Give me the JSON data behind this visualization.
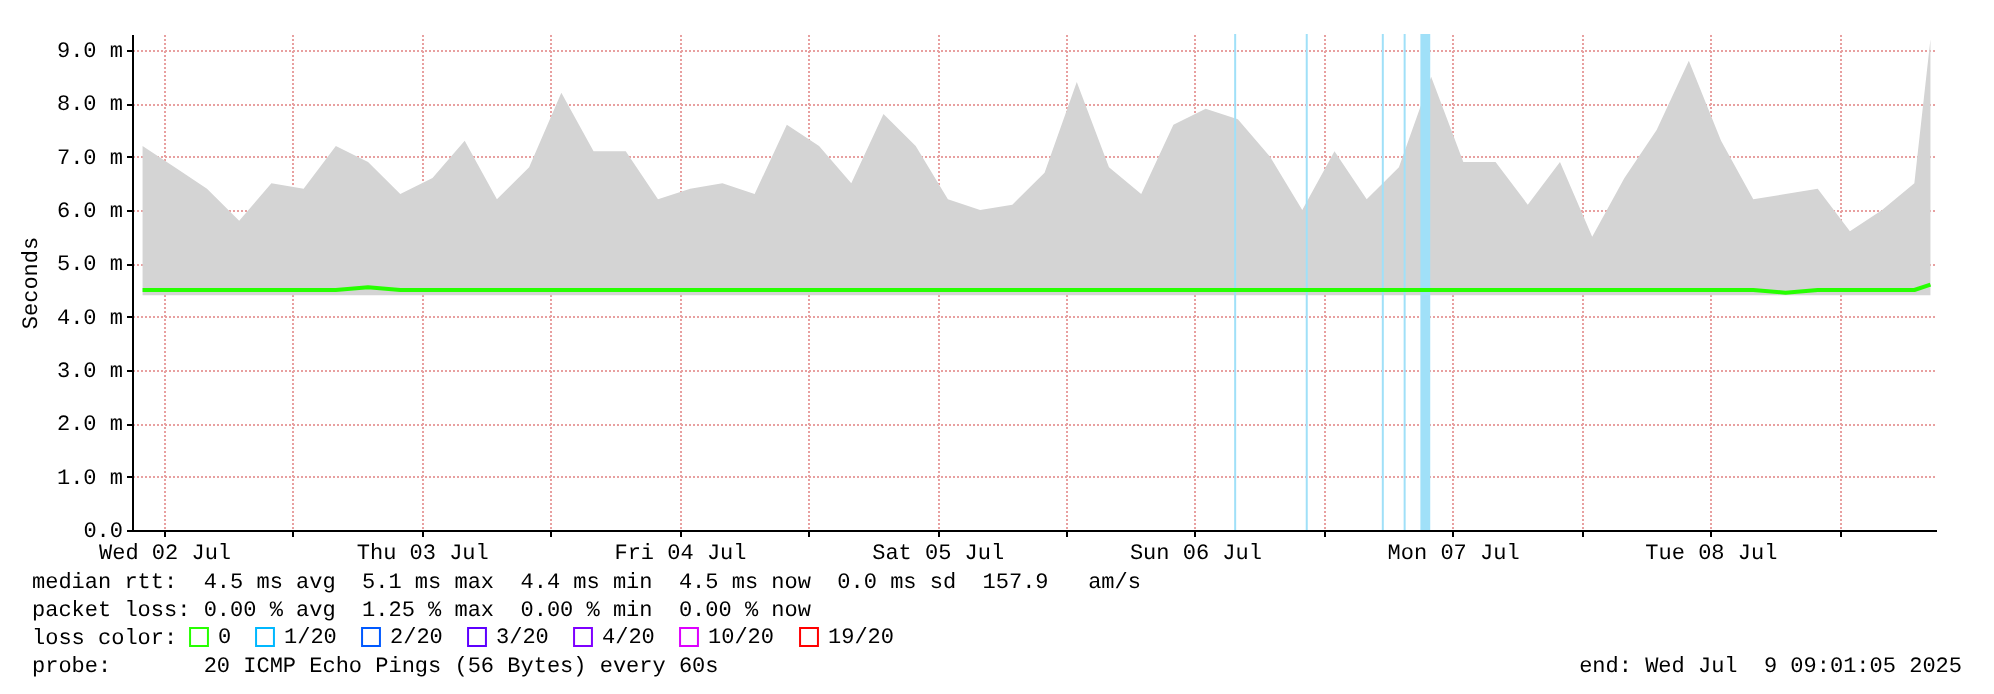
{
  "chart_data": {
    "type": "line",
    "ylabel": "Seconds",
    "legend_title": "loss color:",
    "legend": "bottom",
    "grid": true,
    "x": [
      "2025-07-02T10:00",
      "2025-07-02T13:00",
      "2025-07-02T16:00",
      "2025-07-02T19:00",
      "2025-07-02T22:00",
      "2025-07-03T01:00",
      "2025-07-03T04:00",
      "2025-07-03T07:00",
      "2025-07-03T10:00",
      "2025-07-03T13:00",
      "2025-07-03T16:00",
      "2025-07-03T19:00",
      "2025-07-03T22:00",
      "2025-07-04T01:00",
      "2025-07-04T04:00",
      "2025-07-04T07:00",
      "2025-07-04T10:00",
      "2025-07-04T13:00",
      "2025-07-04T16:00",
      "2025-07-04T19:00",
      "2025-07-04T22:00",
      "2025-07-05T01:00",
      "2025-07-05T04:00",
      "2025-07-05T07:00",
      "2025-07-05T10:00",
      "2025-07-05T13:00",
      "2025-07-05T16:00",
      "2025-07-05T19:00",
      "2025-07-05T22:00",
      "2025-07-06T01:00",
      "2025-07-06T04:00",
      "2025-07-06T07:00",
      "2025-07-06T10:00",
      "2025-07-06T13:00",
      "2025-07-06T16:00",
      "2025-07-06T19:00",
      "2025-07-06T22:00",
      "2025-07-07T01:00",
      "2025-07-07T04:00",
      "2025-07-07T07:00",
      "2025-07-07T10:00",
      "2025-07-07T13:00",
      "2025-07-07T16:00",
      "2025-07-07T19:00",
      "2025-07-07T22:00",
      "2025-07-08T01:00",
      "2025-07-08T04:00",
      "2025-07-08T07:00",
      "2025-07-08T10:00",
      "2025-07-08T13:00",
      "2025-07-08T16:00",
      "2025-07-08T19:00",
      "2025-07-08T22:00",
      "2025-07-09T01:00",
      "2025-07-09T04:00",
      "2025-07-09T07:00",
      "2025-07-09T08:30"
    ],
    "series": [
      {
        "name": "0",
        "color": "#26ff00",
        "values": [
          4.5,
          4.5,
          4.5,
          4.5,
          4.5,
          4.5,
          4.5,
          4.55,
          4.5,
          4.5,
          4.5,
          4.5,
          4.5,
          4.5,
          4.5,
          4.5,
          4.5,
          4.5,
          4.5,
          4.5,
          4.5,
          4.5,
          4.5,
          4.5,
          4.5,
          4.5,
          4.5,
          4.5,
          4.5,
          4.5,
          4.5,
          4.5,
          4.5,
          4.5,
          4.5,
          4.5,
          4.5,
          4.5,
          4.5,
          4.5,
          4.5,
          4.5,
          4.5,
          4.5,
          4.5,
          4.5,
          4.5,
          4.5,
          4.5,
          4.5,
          4.5,
          4.45,
          4.5,
          4.5,
          4.5,
          4.5,
          4.6
        ],
        "lower": [
          4.4,
          4.4,
          4.4,
          4.4,
          4.4,
          4.4,
          4.4,
          4.4,
          4.4,
          4.4,
          4.4,
          4.4,
          4.4,
          4.4,
          4.4,
          4.4,
          4.4,
          4.4,
          4.4,
          4.4,
          4.4,
          4.4,
          4.4,
          4.4,
          4.4,
          4.4,
          4.4,
          4.4,
          4.4,
          4.4,
          4.4,
          4.4,
          4.4,
          4.4,
          4.4,
          4.4,
          4.4,
          4.4,
          4.4,
          4.4,
          4.4,
          4.4,
          4.4,
          4.4,
          4.4,
          4.4,
          4.4,
          4.4,
          4.4,
          4.4,
          4.4,
          4.4,
          4.4,
          4.4,
          4.4,
          4.4,
          4.4
        ],
        "upper": [
          7.2,
          6.8,
          6.4,
          5.8,
          6.5,
          6.4,
          7.2,
          6.9,
          6.3,
          6.6,
          7.3,
          6.2,
          6.8,
          8.2,
          7.1,
          7.1,
          6.2,
          6.4,
          6.5,
          6.3,
          7.6,
          7.2,
          6.5,
          7.8,
          7.2,
          6.2,
          6.0,
          6.1,
          6.7,
          8.4,
          6.8,
          6.3,
          7.6,
          7.9,
          7.7,
          7.0,
          6.0,
          7.1,
          6.2,
          6.8,
          8.5,
          6.9,
          6.9,
          6.1,
          6.9,
          5.5,
          6.6,
          7.5,
          8.8,
          7.3,
          6.2,
          6.3,
          6.4,
          5.6,
          6.0,
          6.5,
          9.2
        ]
      },
      {
        "name": "1/20",
        "color": "#00b8ff",
        "values": [
          null,
          null,
          null,
          null,
          null,
          null,
          null,
          null,
          null,
          null,
          null,
          null,
          null,
          null,
          null,
          null,
          null,
          null,
          null,
          null,
          null,
          null,
          null,
          null,
          null,
          null,
          null,
          null,
          null,
          null,
          null,
          null,
          null,
          null,
          null,
          null,
          null,
          null,
          null,
          null,
          null,
          null,
          null,
          null,
          null,
          null,
          null,
          null,
          null,
          null,
          null,
          null,
          null,
          null,
          null,
          null,
          null
        ]
      },
      {
        "name": "2/20",
        "color": "#0059ff",
        "values": [
          null,
          null,
          null,
          null,
          null,
          null,
          null,
          null,
          null,
          null,
          null,
          null,
          null,
          null,
          null,
          null,
          null,
          null,
          null,
          null,
          null,
          null,
          null,
          null,
          null,
          null,
          null,
          null,
          null,
          null,
          null,
          null,
          null,
          null,
          null,
          null,
          null,
          null,
          null,
          null,
          null,
          null,
          null,
          null,
          null,
          null,
          null,
          null,
          null,
          null,
          null,
          null,
          null,
          null,
          null,
          null,
          null
        ]
      },
      {
        "name": "3/20",
        "color": "#5e00ff",
        "values": [
          null,
          null,
          null,
          null,
          null,
          null,
          null,
          null,
          null,
          null,
          null,
          null,
          null,
          null,
          null,
          null,
          null,
          null,
          null,
          null,
          null,
          null,
          null,
          null,
          null,
          null,
          null,
          null,
          null,
          null,
          null,
          null,
          null,
          null,
          null,
          null,
          null,
          null,
          null,
          null,
          null,
          null,
          null,
          null,
          null,
          null,
          null,
          null,
          null,
          null,
          null,
          null,
          null,
          null,
          null,
          null,
          null
        ]
      },
      {
        "name": "4/20",
        "color": "#7e00ff",
        "values": [
          null,
          null,
          null,
          null,
          null,
          null,
          null,
          null,
          null,
          null,
          null,
          null,
          null,
          null,
          null,
          null,
          null,
          null,
          null,
          null,
          null,
          null,
          null,
          null,
          null,
          null,
          null,
          null,
          null,
          null,
          null,
          null,
          null,
          null,
          null,
          null,
          null,
          null,
          null,
          null,
          null,
          null,
          null,
          null,
          null,
          null,
          null,
          null,
          null,
          null,
          null,
          null,
          null,
          null,
          null,
          null,
          null
        ]
      },
      {
        "name": "10/20",
        "color": "#dd00ff",
        "values": [
          null,
          null,
          null,
          null,
          null,
          null,
          null,
          null,
          null,
          null,
          null,
          null,
          null,
          null,
          null,
          null,
          null,
          null,
          null,
          null,
          null,
          null,
          null,
          null,
          null,
          null,
          null,
          null,
          null,
          null,
          null,
          null,
          null,
          null,
          null,
          null,
          null,
          null,
          null,
          null,
          null,
          null,
          null,
          null,
          null,
          null,
          null,
          null,
          null,
          null,
          null,
          null,
          null,
          null,
          null,
          null,
          null
        ]
      },
      {
        "name": "19/20",
        "color": "#ff0000",
        "values": [
          null,
          null,
          null,
          null,
          null,
          null,
          null,
          null,
          null,
          null,
          null,
          null,
          null,
          null,
          null,
          null,
          null,
          null,
          null,
          null,
          null,
          null,
          null,
          null,
          null,
          null,
          null,
          null,
          null,
          null,
          null,
          null,
          null,
          null,
          null,
          null,
          null,
          null,
          null,
          null,
          null,
          null,
          null,
          null,
          null,
          null,
          null,
          null,
          null,
          null,
          null,
          null,
          null,
          null,
          null,
          null,
          null
        ]
      }
    ],
    "xlim": [
      "2025-07-02T09:01",
      "2025-07-09T09:01"
    ],
    "xticks": [
      {
        "value": "2025-07-02T12:00",
        "label": "Wed 02 Jul"
      },
      {
        "value": "2025-07-03T00:00",
        "label": null
      },
      {
        "value": "2025-07-03T12:00",
        "label": "Thu 03 Jul"
      },
      {
        "value": "2025-07-04T00:00",
        "label": null
      },
      {
        "value": "2025-07-04T12:00",
        "label": "Fri 04 Jul"
      },
      {
        "value": "2025-07-05T00:00",
        "label": null
      },
      {
        "value": "2025-07-05T12:00",
        "label": "Sat 05 Jul"
      },
      {
        "value": "2025-07-06T00:00",
        "label": null
      },
      {
        "value": "2025-07-06T12:00",
        "label": "Sun 06 Jul"
      },
      {
        "value": "2025-07-07T00:00",
        "label": null
      },
      {
        "value": "2025-07-07T12:00",
        "label": "Mon 07 Jul"
      },
      {
        "value": "2025-07-08T00:00",
        "label": null
      },
      {
        "value": "2025-07-08T12:00",
        "label": "Tue 08 Jul"
      },
      {
        "value": "2025-07-09T00:00",
        "label": null
      }
    ],
    "ylim": [
      0,
      9.3
    ],
    "yticks": [
      {
        "value": 0,
        "label": "0.0"
      },
      {
        "value": 1,
        "label": "1.0 m"
      },
      {
        "value": 2,
        "label": "2.0 m"
      },
      {
        "value": 3,
        "label": "3.0 m"
      },
      {
        "value": 4,
        "label": "4.0 m"
      },
      {
        "value": 5,
        "label": "5.0 m"
      },
      {
        "value": 6,
        "label": "6.0 m"
      },
      {
        "value": 7,
        "label": "7.0 m"
      },
      {
        "value": 8,
        "label": "8.0 m"
      },
      {
        "value": 9,
        "label": "9.0 m"
      }
    ],
    "ref_lines": [
      {
        "axis": "x",
        "value": "2025-07-06T15:45",
        "color": "#a0e0f8"
      },
      {
        "axis": "x",
        "value": "2025-07-06T22:25",
        "color": "#a0e0f8"
      },
      {
        "axis": "x",
        "value": "2025-07-07T05:30",
        "color": "#a0e0f8"
      },
      {
        "axis": "x",
        "value": "2025-07-07T07:32",
        "color": "#a0e0f8"
      }
    ],
    "bands": [
      {
        "axis": "x",
        "from": "2025-07-07T09:00",
        "to": "2025-07-07T09:55",
        "color": "#a0e0f8"
      }
    ],
    "annotations": [
      "median rtt:  4.5 ms avg  5.1 ms max  4.4 ms min  4.5 ms now  0.0 ms sd  157.9   am/s",
      "packet loss: 0.00 % avg  1.25 % max  0.00 % min  0.00 % now",
      "probe:       20 ICMP Echo Pings (56 Bytes) every 60s",
      "end: Wed Jul  9 09:01:05 2025"
    ]
  }
}
